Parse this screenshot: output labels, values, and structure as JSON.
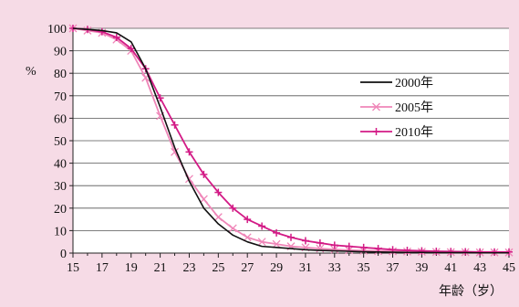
{
  "chart_data": {
    "type": "line",
    "title": "",
    "xlabel": "年龄（岁）",
    "ylabel": "%",
    "xlim": [
      15,
      45
    ],
    "ylim": [
      0,
      100
    ],
    "x_ticks": [
      15,
      17,
      19,
      21,
      23,
      25,
      27,
      29,
      31,
      33,
      35,
      37,
      39,
      41,
      43,
      45
    ],
    "y_ticks": [
      0,
      10,
      20,
      30,
      40,
      50,
      60,
      70,
      80,
      90,
      100
    ],
    "grid": true,
    "legend_position": "right-middle",
    "x": [
      15,
      16,
      17,
      18,
      19,
      20,
      21,
      22,
      23,
      24,
      25,
      26,
      27,
      28,
      29,
      30,
      31,
      32,
      33,
      34,
      35,
      36,
      37,
      38,
      39,
      40,
      41,
      42,
      43,
      44,
      45
    ],
    "series": [
      {
        "name": "2000年",
        "color": "#111111",
        "marker": "none",
        "values": [
          100,
          99.5,
          99,
          98,
          94,
          82,
          65,
          47,
          32,
          20,
          13,
          8,
          5,
          3,
          2.5,
          2,
          1.5,
          1.2,
          1,
          0.8,
          0.6,
          0.5,
          0.4,
          0.3,
          0.3,
          0.2,
          0.2,
          0.2,
          0.1,
          0.1,
          0.1
        ]
      },
      {
        "name": "2005年",
        "color": "#ef86b8",
        "marker": "x",
        "values": [
          100,
          99,
          98,
          95,
          90,
          78,
          61,
          45,
          33,
          24,
          16,
          11,
          7,
          5,
          4,
          3,
          2.5,
          2,
          1.6,
          1.3,
          1.1,
          0.9,
          0.8,
          0.7,
          0.6,
          0.5,
          0.4,
          0.4,
          0.3,
          0.3,
          0.3
        ]
      },
      {
        "name": "2010年",
        "color": "#d31b86",
        "marker": "plus",
        "values": [
          100,
          99.5,
          98.5,
          96,
          91,
          82,
          69,
          57,
          45,
          35,
          27,
          20,
          15,
          12,
          9,
          7,
          5.5,
          4.5,
          3.5,
          3,
          2.5,
          2,
          1.5,
          1.2,
          1,
          0.8,
          0.7,
          0.6,
          0.5,
          0.5,
          0.5
        ]
      }
    ]
  }
}
